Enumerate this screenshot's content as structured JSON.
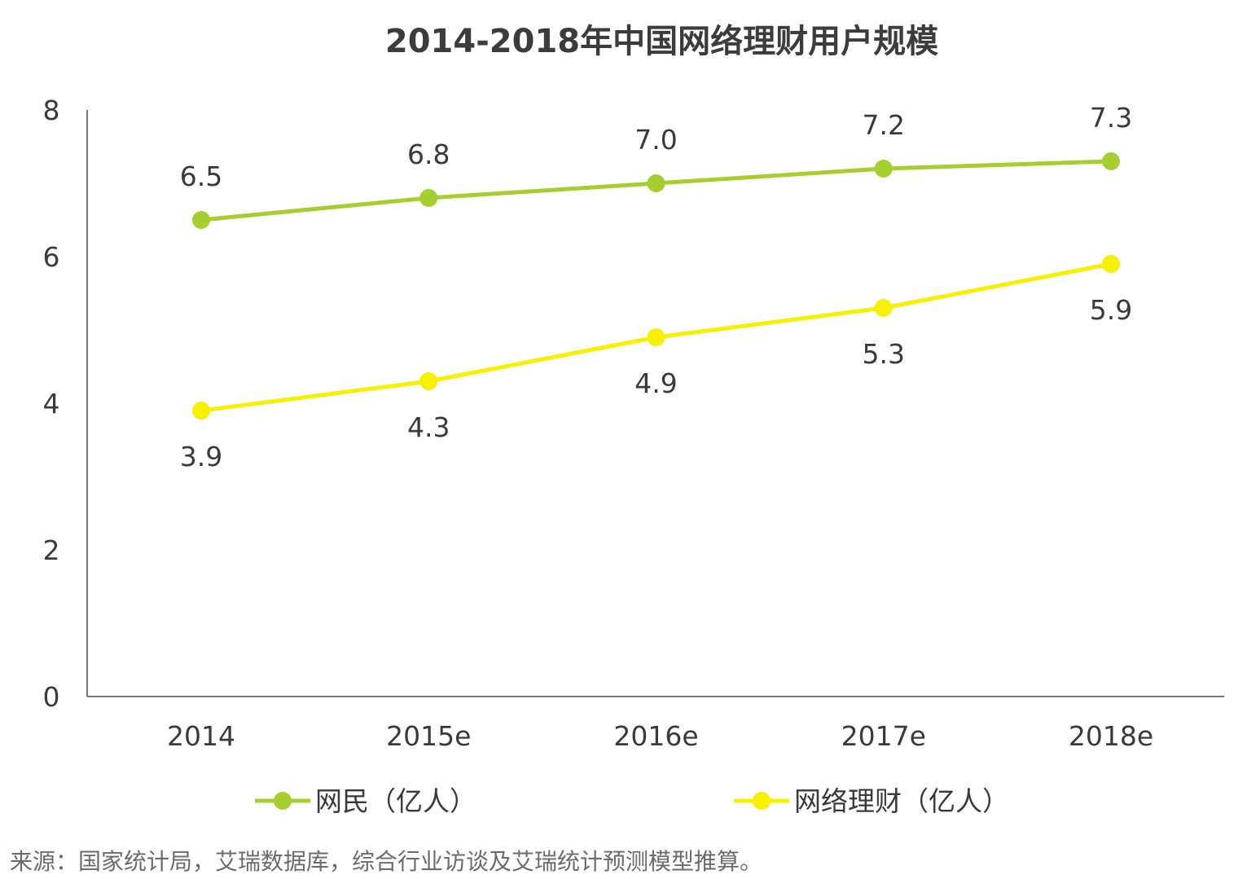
{
  "chart_data": {
    "type": "line",
    "title": "2014-2018年中国网络理财用户规模",
    "categories": [
      "2014",
      "2015e",
      "2016e",
      "2017e",
      "2018e"
    ],
    "series": [
      {
        "name": "网民（亿人）",
        "values": [
          6.5,
          6.8,
          7.0,
          7.2,
          7.3
        ],
        "value_labels": [
          "6.5",
          "6.8",
          "7.0",
          "7.2",
          "7.3"
        ],
        "color": "#a4cf2e",
        "label_position": "above"
      },
      {
        "name": "网络理财（亿人）",
        "values": [
          3.9,
          4.3,
          4.9,
          5.3,
          5.9
        ],
        "value_labels": [
          "3.9",
          "4.3",
          "4.9",
          "5.3",
          "5.9"
        ],
        "color": "#f7f000",
        "label_position": "below"
      }
    ],
    "yticks": [
      "0",
      "2",
      "4",
      "6",
      "8"
    ],
    "ylim": [
      0,
      8
    ],
    "xlabel": "",
    "ylabel": "",
    "grid": false,
    "legend_position": "bottom"
  },
  "source": "来源：国家统计局，艾瑞数据库，综合行业访谈及艾瑞统计预测模型推算。"
}
